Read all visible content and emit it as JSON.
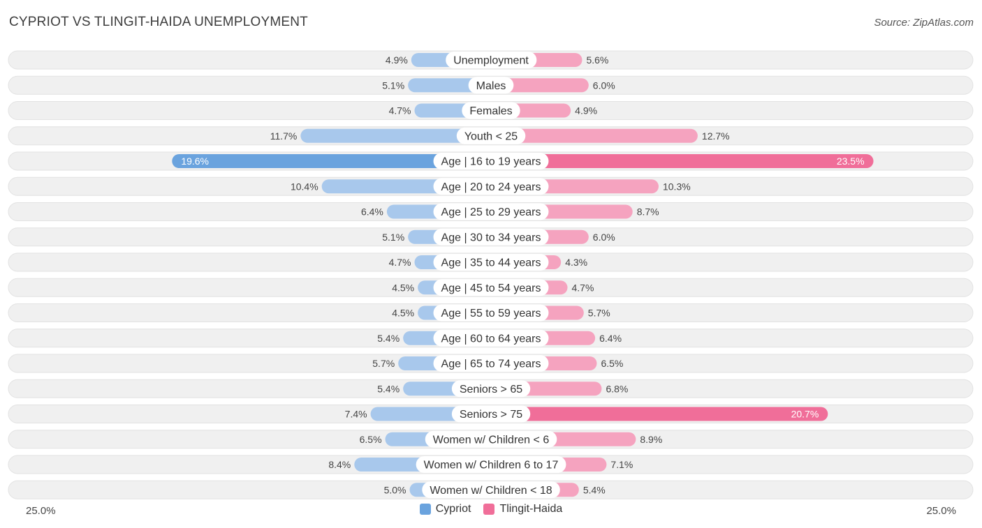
{
  "title": "CYPRIOT VS TLINGIT-HAIDA UNEMPLOYMENT",
  "source": "Source: ZipAtlas.com",
  "colors": {
    "cypriot": "#6aa3de",
    "cypriot_light": "#a8c8ec",
    "tlingit": "#f06e99",
    "tlingit_light": "#f5a3bf",
    "row_bg": "#f0f0f0"
  },
  "chart_data": {
    "type": "bar",
    "orientation": "horizontal-diverging",
    "title": "CYPRIOT VS TLINGIT-HAIDA UNEMPLOYMENT",
    "axis_max": 25.0,
    "axis_left_label": "25.0%",
    "axis_right_label": "25.0%",
    "categories": [
      "Unemployment",
      "Males",
      "Females",
      "Youth < 25",
      "Age | 16 to 19 years",
      "Age | 20 to 24 years",
      "Age | 25 to 29 years",
      "Age | 30 to 34 years",
      "Age | 35 to 44 years",
      "Age | 45 to 54 years",
      "Age | 55 to 59 years",
      "Age | 60 to 64 years",
      "Age | 65 to 74 years",
      "Seniors > 65",
      "Seniors > 75",
      "Women w/ Children < 6",
      "Women w/ Children 6 to 17",
      "Women w/ Children < 18"
    ],
    "series": [
      {
        "name": "Cypriot",
        "values": [
          4.9,
          5.1,
          4.7,
          11.7,
          19.6,
          10.4,
          6.4,
          5.1,
          4.7,
          4.5,
          4.5,
          5.4,
          5.7,
          5.4,
          7.4,
          6.5,
          8.4,
          5.0
        ],
        "labels": [
          "4.9%",
          "5.1%",
          "4.7%",
          "11.7%",
          "19.6%",
          "10.4%",
          "6.4%",
          "5.1%",
          "4.7%",
          "4.5%",
          "4.5%",
          "5.4%",
          "5.7%",
          "5.4%",
          "7.4%",
          "6.5%",
          "8.4%",
          "5.0%"
        ]
      },
      {
        "name": "Tlingit-Haida",
        "values": [
          5.6,
          6.0,
          4.9,
          12.7,
          23.5,
          10.3,
          8.7,
          6.0,
          4.3,
          4.7,
          5.7,
          6.4,
          6.5,
          6.8,
          20.7,
          8.9,
          7.1,
          5.4
        ],
        "labels": [
          "5.6%",
          "6.0%",
          "4.9%",
          "12.7%",
          "23.5%",
          "10.3%",
          "8.7%",
          "6.0%",
          "4.3%",
          "4.7%",
          "5.7%",
          "6.4%",
          "6.5%",
          "6.8%",
          "20.7%",
          "8.9%",
          "7.1%",
          "5.4%"
        ]
      }
    ],
    "legend": [
      "Cypriot",
      "Tlingit-Haida"
    ]
  }
}
